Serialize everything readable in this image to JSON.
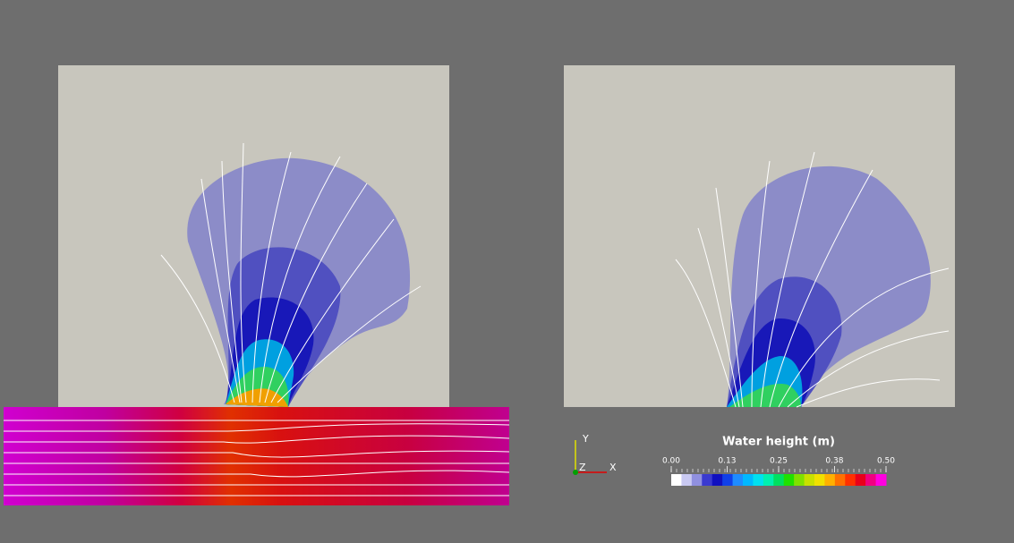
{
  "colorbar": {
    "title": "Water height (m)",
    "ticks": [
      {
        "value": 0,
        "label": "0.00"
      },
      {
        "value": 0.13,
        "label": "0.13"
      },
      {
        "value": 0.25,
        "label": "0.25"
      },
      {
        "value": 0.38,
        "label": "0.38"
      },
      {
        "value": 0.5,
        "label": "0.50"
      }
    ],
    "colors": [
      "#ffffff",
      "#c9c9f2",
      "#9090e0",
      "#3a3ad0",
      "#1010c0",
      "#1040e8",
      "#1e8cff",
      "#00b8ff",
      "#00e0f0",
      "#00f0b0",
      "#00e060",
      "#20e000",
      "#80e000",
      "#c8e000",
      "#f0e000",
      "#ffb000",
      "#ff7000",
      "#ff3000",
      "#e8001a",
      "#f00080",
      "#ff00e0"
    ]
  },
  "axes": {
    "y": "Y",
    "z": "Z",
    "x": "X"
  }
}
